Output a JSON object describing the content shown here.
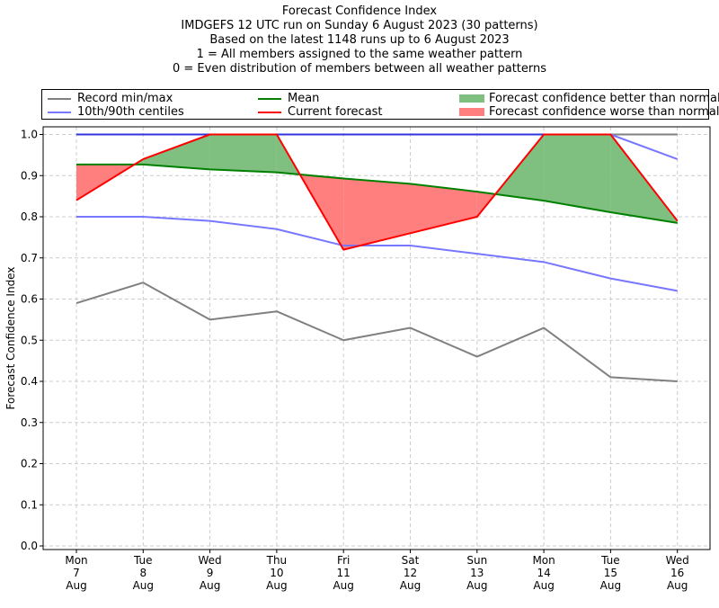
{
  "title_lines": [
    "Forecast Confidence Index",
    "IMDGEFS 12 UTC run on Sunday 6 August 2023 (30 patterns)",
    "Based on the latest 1148 runs up to 6 August 2023",
    "1 = All members assigned to the same weather pattern",
    "0 = Even distribution of members between all weather patterns"
  ],
  "legend": {
    "record": "Record min/max",
    "centiles": "10th/90th centiles",
    "mean": "Mean",
    "current": "Current forecast",
    "better": "Forecast confidence better than normal",
    "worse": "Forecast confidence worse than normal"
  },
  "colors": {
    "record": "#808080",
    "centiles": "#7777ff",
    "max_line": "#3333dd",
    "mean": "#008000",
    "current": "#ff0000",
    "better": "#7fbf7f",
    "worse": "#ff7f7f",
    "grid": "#cccccc"
  },
  "chart_data": {
    "type": "line",
    "ylabel": "Forecast Confidence Index",
    "ylim": [
      0,
      1
    ],
    "yticks": [
      "0.0",
      "0.1",
      "0.2",
      "0.3",
      "0.4",
      "0.5",
      "0.6",
      "0.7",
      "0.8",
      "0.9",
      "1.0"
    ],
    "grid": true,
    "legend_position": "top",
    "categories": [
      [
        "Mon",
        "7",
        "Aug"
      ],
      [
        "Tue",
        "8",
        "Aug"
      ],
      [
        "Wed",
        "9",
        "Aug"
      ],
      [
        "Thu",
        "10",
        "Aug"
      ],
      [
        "Fri",
        "11",
        "Aug"
      ],
      [
        "Sat",
        "12",
        "Aug"
      ],
      [
        "Sun",
        "13",
        "Aug"
      ],
      [
        "Mon",
        "14",
        "Aug"
      ],
      [
        "Tue",
        "15",
        "Aug"
      ],
      [
        "Wed",
        "16",
        "Aug"
      ]
    ],
    "series": [
      {
        "name": "Record min/max",
        "key": "record_min",
        "values": [
          0.59,
          0.64,
          0.55,
          0.57,
          0.5,
          0.53,
          0.46,
          0.53,
          0.41,
          0.4
        ]
      },
      {
        "name": "Record min/max",
        "key": "record_max",
        "values": [
          1.0,
          1.0,
          1.0,
          1.0,
          1.0,
          1.0,
          1.0,
          1.0,
          1.0,
          1.0
        ]
      },
      {
        "name": "10th/90th centiles",
        "key": "p10",
        "values": [
          0.8,
          0.8,
          0.79,
          0.77,
          0.73,
          0.73,
          0.71,
          0.69,
          0.65,
          0.62
        ]
      },
      {
        "name": "10th/90th centiles",
        "key": "p90",
        "values": [
          1.0,
          1.0,
          1.0,
          1.0,
          1.0,
          1.0,
          1.0,
          1.0,
          1.0,
          0.94
        ]
      },
      {
        "name": "Mean",
        "key": "mean",
        "values": [
          0.927,
          0.927,
          0.915,
          0.908,
          0.893,
          0.88,
          0.861,
          0.839,
          0.811,
          0.785
        ]
      },
      {
        "name": "Current forecast",
        "key": "current",
        "values": [
          0.84,
          0.94,
          1.0,
          1.0,
          0.72,
          0.76,
          0.8,
          1.0,
          1.0,
          0.79
        ]
      }
    ]
  }
}
